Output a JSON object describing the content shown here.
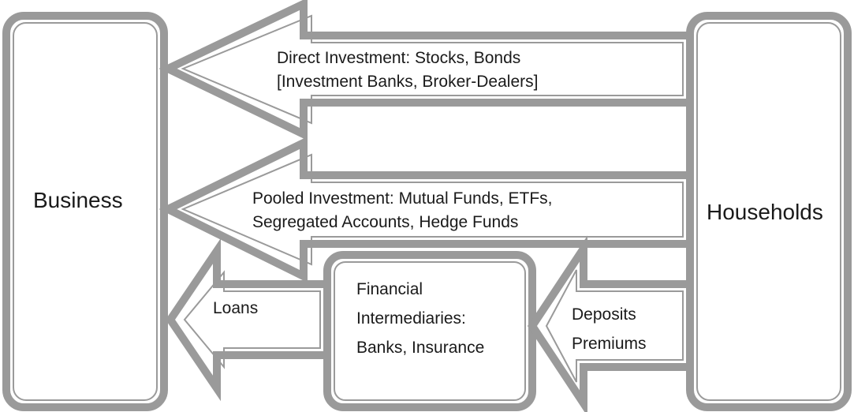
{
  "nodes": {
    "business": "Business",
    "households": "Households",
    "intermediaries": [
      "Financial",
      "Intermediaries:",
      "Banks, Insurance"
    ]
  },
  "flows": {
    "direct": [
      "Direct Investment: Stocks, Bonds",
      "[Investment Banks, Broker-Dealers]"
    ],
    "pooled": [
      "Pooled Investment: Mutual Funds, ETFs,",
      "Segregated Accounts, Hedge Funds"
    ],
    "loans": "Loans",
    "deposits": [
      "Deposits",
      "Premiums"
    ]
  }
}
